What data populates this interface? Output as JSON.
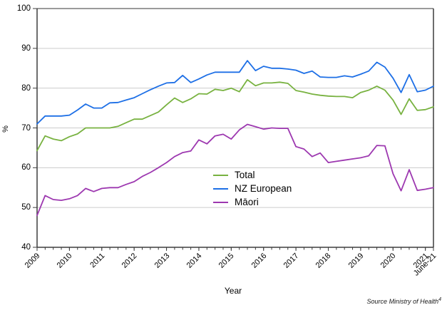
{
  "figure": {
    "background": "#ffffff"
  },
  "chart_data": {
    "type": "line",
    "title": "",
    "xlabel": "Year",
    "ylabel": "%",
    "ylim": [
      40,
      100
    ],
    "ytick_interval": 10,
    "y_tick_labels": [
      "40",
      "50",
      "60",
      "70",
      "80",
      "90",
      "100"
    ],
    "x_interval": "quarterly",
    "x_range": "2009 Q1 to June 2021",
    "n_points": 50,
    "x_ticks": [
      {
        "label": "2009",
        "pos": 0
      },
      {
        "label": "2010",
        "pos": 4
      },
      {
        "label": "2011",
        "pos": 8
      },
      {
        "label": "2012",
        "pos": 12
      },
      {
        "label": "2013",
        "pos": 16
      },
      {
        "label": "2014",
        "pos": 20
      },
      {
        "label": "2015",
        "pos": 24
      },
      {
        "label": "2016",
        "pos": 28
      },
      {
        "label": "2017",
        "pos": 32
      },
      {
        "label": "2018",
        "pos": 36
      },
      {
        "label": "2019",
        "pos": 40
      },
      {
        "label": "2020",
        "pos": 44
      },
      {
        "label": "2021",
        "pos": 48
      },
      {
        "label": "June-21",
        "pos": 49
      }
    ],
    "grid": "horizontal light gray lines at 50,60,70,80,90",
    "legend_position": "inside plot, lower-center",
    "series": [
      {
        "name": "Total",
        "color": "#78b240",
        "values": [
          64.3,
          68.0,
          67.2,
          66.8,
          67.8,
          68.5,
          70.0,
          70.0,
          70.0,
          70.0,
          70.4,
          71.3,
          72.2,
          72.2,
          73.1,
          74.0,
          75.8,
          77.5,
          76.4,
          77.3,
          78.6,
          78.5,
          79.7,
          79.4,
          80.0,
          79.1,
          82.1,
          80.6,
          81.3,
          81.3,
          81.5,
          81.2,
          79.4,
          79.0,
          78.5,
          78.2,
          78.0,
          77.9,
          77.9,
          77.6,
          78.9,
          79.5,
          80.5,
          79.5,
          77.0,
          73.4,
          77.3,
          74.4,
          74.6,
          75.3
        ]
      },
      {
        "name": "NZ European",
        "color": "#1d6fe6",
        "values": [
          71.0,
          73.0,
          73.0,
          73.0,
          73.2,
          74.5,
          76.0,
          75.0,
          75.0,
          76.3,
          76.4,
          77.0,
          77.6,
          78.6,
          79.6,
          80.5,
          81.3,
          81.4,
          83.2,
          81.4,
          82.3,
          83.3,
          84.0,
          84.0,
          84.0,
          84.0,
          86.9,
          84.4,
          85.5,
          85.0,
          85.0,
          84.8,
          84.5,
          83.7,
          84.3,
          82.8,
          82.7,
          82.7,
          83.1,
          82.8,
          83.5,
          84.3,
          86.5,
          85.3,
          82.5,
          78.9,
          83.4,
          79.1,
          79.5,
          80.5
        ]
      },
      {
        "name": "Māori",
        "color": "#9d38b0",
        "values": [
          48.0,
          53.0,
          52.0,
          51.8,
          52.2,
          53.0,
          54.8,
          54.0,
          54.8,
          55.0,
          55.0,
          55.8,
          56.5,
          57.8,
          58.8,
          60.0,
          61.3,
          62.8,
          63.8,
          64.2,
          67.0,
          66.0,
          68.0,
          68.4,
          67.2,
          69.5,
          70.9,
          70.3,
          69.7,
          70.0,
          69.9,
          69.9,
          65.3,
          64.7,
          62.8,
          63.7,
          61.3,
          61.6,
          61.9,
          62.2,
          62.5,
          63.0,
          65.6,
          65.5,
          58.5,
          54.2,
          59.5,
          54.3,
          54.6,
          55.0
        ]
      }
    ],
    "source_note": "Source Ministry of Health",
    "source_superscript": "4",
    "colors": {
      "grid": "#cccccc",
      "axis": "#3d3d3d",
      "top_border": "#7a7a7a",
      "text": "#000000"
    }
  }
}
